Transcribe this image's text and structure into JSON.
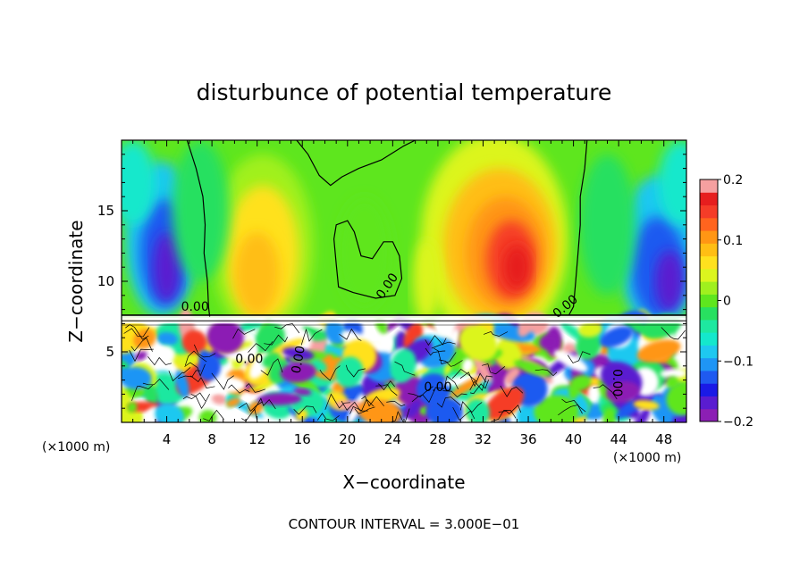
{
  "chart_data": {
    "type": "heatmap",
    "title": "disturbunce of potential temperature",
    "xlabel": "X−coordinate",
    "ylabel": "Z−coordinate",
    "x_unit_left": "(×1000 m)",
    "x_unit_right": "(×1000 m)",
    "xlim": [
      0,
      50
    ],
    "ylim": [
      0,
      20
    ],
    "xticks": [
      4,
      8,
      12,
      16,
      20,
      24,
      28,
      32,
      36,
      40,
      44,
      48
    ],
    "xtick_labels": [
      "4",
      "8",
      "12",
      "16",
      "20",
      "24",
      "28",
      "32",
      "36",
      "40",
      "44",
      "48"
    ],
    "yticks": [
      5,
      10,
      15
    ],
    "ytick_labels": [
      "5",
      "10",
      "15"
    ],
    "colorbar": {
      "min": -0.2,
      "max": 0.2,
      "ticks": [
        0.2,
        0.1,
        0,
        -0.1,
        -0.2
      ],
      "tick_labels": [
        "0.2",
        "0.1",
        "0",
        "−0.1",
        "−0.2"
      ],
      "colors": [
        "#8c1fb4",
        "#5a1cd0",
        "#1a1ae6",
        "#1f5af0",
        "#1f95f5",
        "#1ec8f0",
        "#14e8cc",
        "#1ee8a0",
        "#28e060",
        "#5ee61e",
        "#a0f01e",
        "#dcf51e",
        "#ffe11e",
        "#ffbe14",
        "#ff9614",
        "#ff641e",
        "#f53c28",
        "#e61e1e",
        "#f5a0a0"
      ]
    },
    "contour_labels": [
      "0.00",
      "0.00",
      "0.00",
      "0.00",
      "0.00",
      "0.00",
      "0.00"
    ],
    "footer": "CONTOUR INTERVAL = 3.000E−01",
    "grid": false
  }
}
